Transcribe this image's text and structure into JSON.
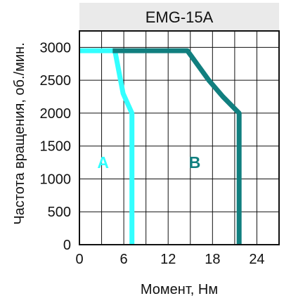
{
  "chart_data": {
    "type": "line",
    "title": "EMG-15A",
    "xlabel": "Момент, Нм",
    "ylabel": "Частота вращения, об./мин.",
    "xlim": [
      0,
      27
    ],
    "ylim": [
      0,
      3250
    ],
    "x_ticks": [
      0,
      6,
      12,
      18,
      24
    ],
    "x_tick_labels": [
      "0",
      "6",
      "12",
      "18",
      "24"
    ],
    "y_ticks": [
      0,
      500,
      1000,
      1500,
      2000,
      2500,
      3000
    ],
    "y_tick_labels": [
      "0",
      "500",
      "1000",
      "1500",
      "2000",
      "2500",
      "3000"
    ],
    "grid": true,
    "series": [
      {
        "name": "A",
        "color": "#33ffff",
        "points": [
          [
            0,
            2950
          ],
          [
            4.8,
            2950
          ],
          [
            5.9,
            2300
          ],
          [
            7.1,
            2000
          ],
          [
            7.1,
            0
          ]
        ]
      },
      {
        "name": "B",
        "color": "#117f7f",
        "points": [
          [
            4.5,
            2950
          ],
          [
            14.6,
            2950
          ],
          [
            17.5,
            2500
          ],
          [
            19.4,
            2250
          ],
          [
            21.6,
            2000
          ],
          [
            21.6,
            0
          ]
        ]
      }
    ],
    "region_labels": [
      {
        "text": "A",
        "x": 3.2,
        "y": 1250,
        "color": "#33ffff"
      },
      {
        "text": "B",
        "x": 15.6,
        "y": 1250,
        "color": "#117f7f"
      }
    ]
  }
}
